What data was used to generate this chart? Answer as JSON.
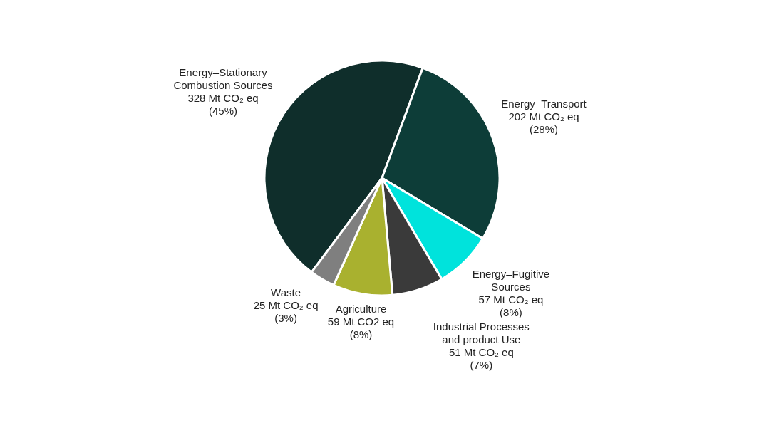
{
  "chart_data": {
    "type": "pie",
    "categories": [
      "Energy–Stationary Combustion Sources",
      "Energy–Transport",
      "Energy–Fugitive Sources",
      "Industrial Processes and product Use",
      "Agriculture",
      "Waste"
    ],
    "values": [
      328,
      202,
      57,
      51,
      59,
      25
    ],
    "colors": [
      "#0f2e2b",
      "#0d3d38",
      "#00e3dc",
      "#3a3a3a",
      "#a9b12f",
      "#7f7f7f"
    ],
    "value_labels": [
      "328 Mt CO₂ eq (45%)",
      "202 Mt CO₂ eq (28%)",
      "57 Mt CO₂ eq (8%)",
      "51 Mt CO₂ eq (7%)",
      "59 Mt CO2 eq (8%)",
      "25 Mt CO₂ eq (3%)"
    ]
  }
}
